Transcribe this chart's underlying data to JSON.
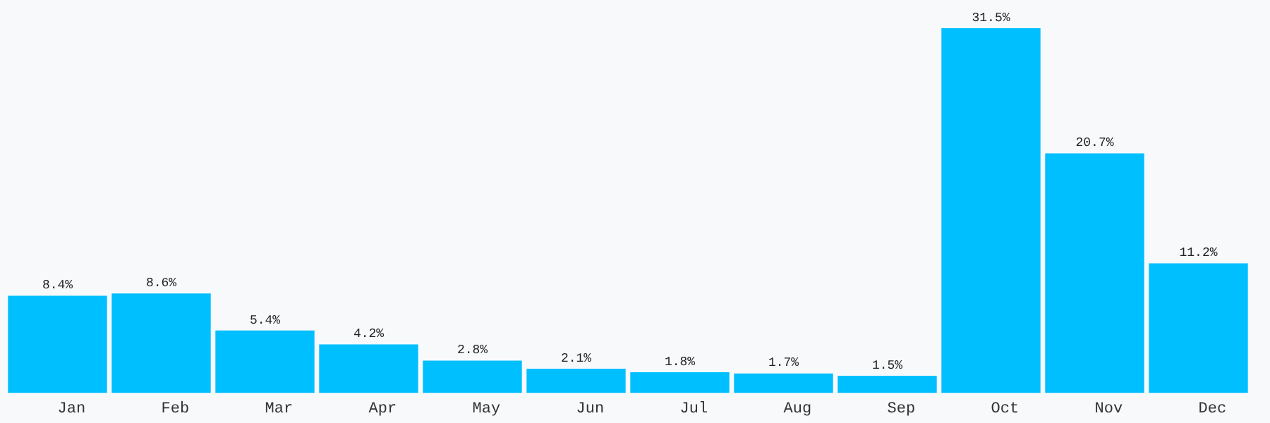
{
  "chart_data": {
    "type": "bar",
    "categories": [
      "Jan",
      "Feb",
      "Mar",
      "Apr",
      "May",
      "Jun",
      "Jul",
      "Aug",
      "Sep",
      "Oct",
      "Nov",
      "Dec"
    ],
    "values": [
      8.4,
      8.6,
      5.4,
      4.2,
      2.8,
      2.1,
      1.8,
      1.7,
      1.5,
      31.5,
      20.7,
      11.2
    ],
    "value_labels": [
      "8.4%",
      "8.6%",
      "5.4%",
      "4.2%",
      "2.8%",
      "2.1%",
      "1.8%",
      "1.7%",
      "1.5%",
      "31.5%",
      "20.7%",
      "11.2%"
    ],
    "color": "#00bfff",
    "grid": false,
    "legend": false,
    "tick_labels": "x"
  }
}
